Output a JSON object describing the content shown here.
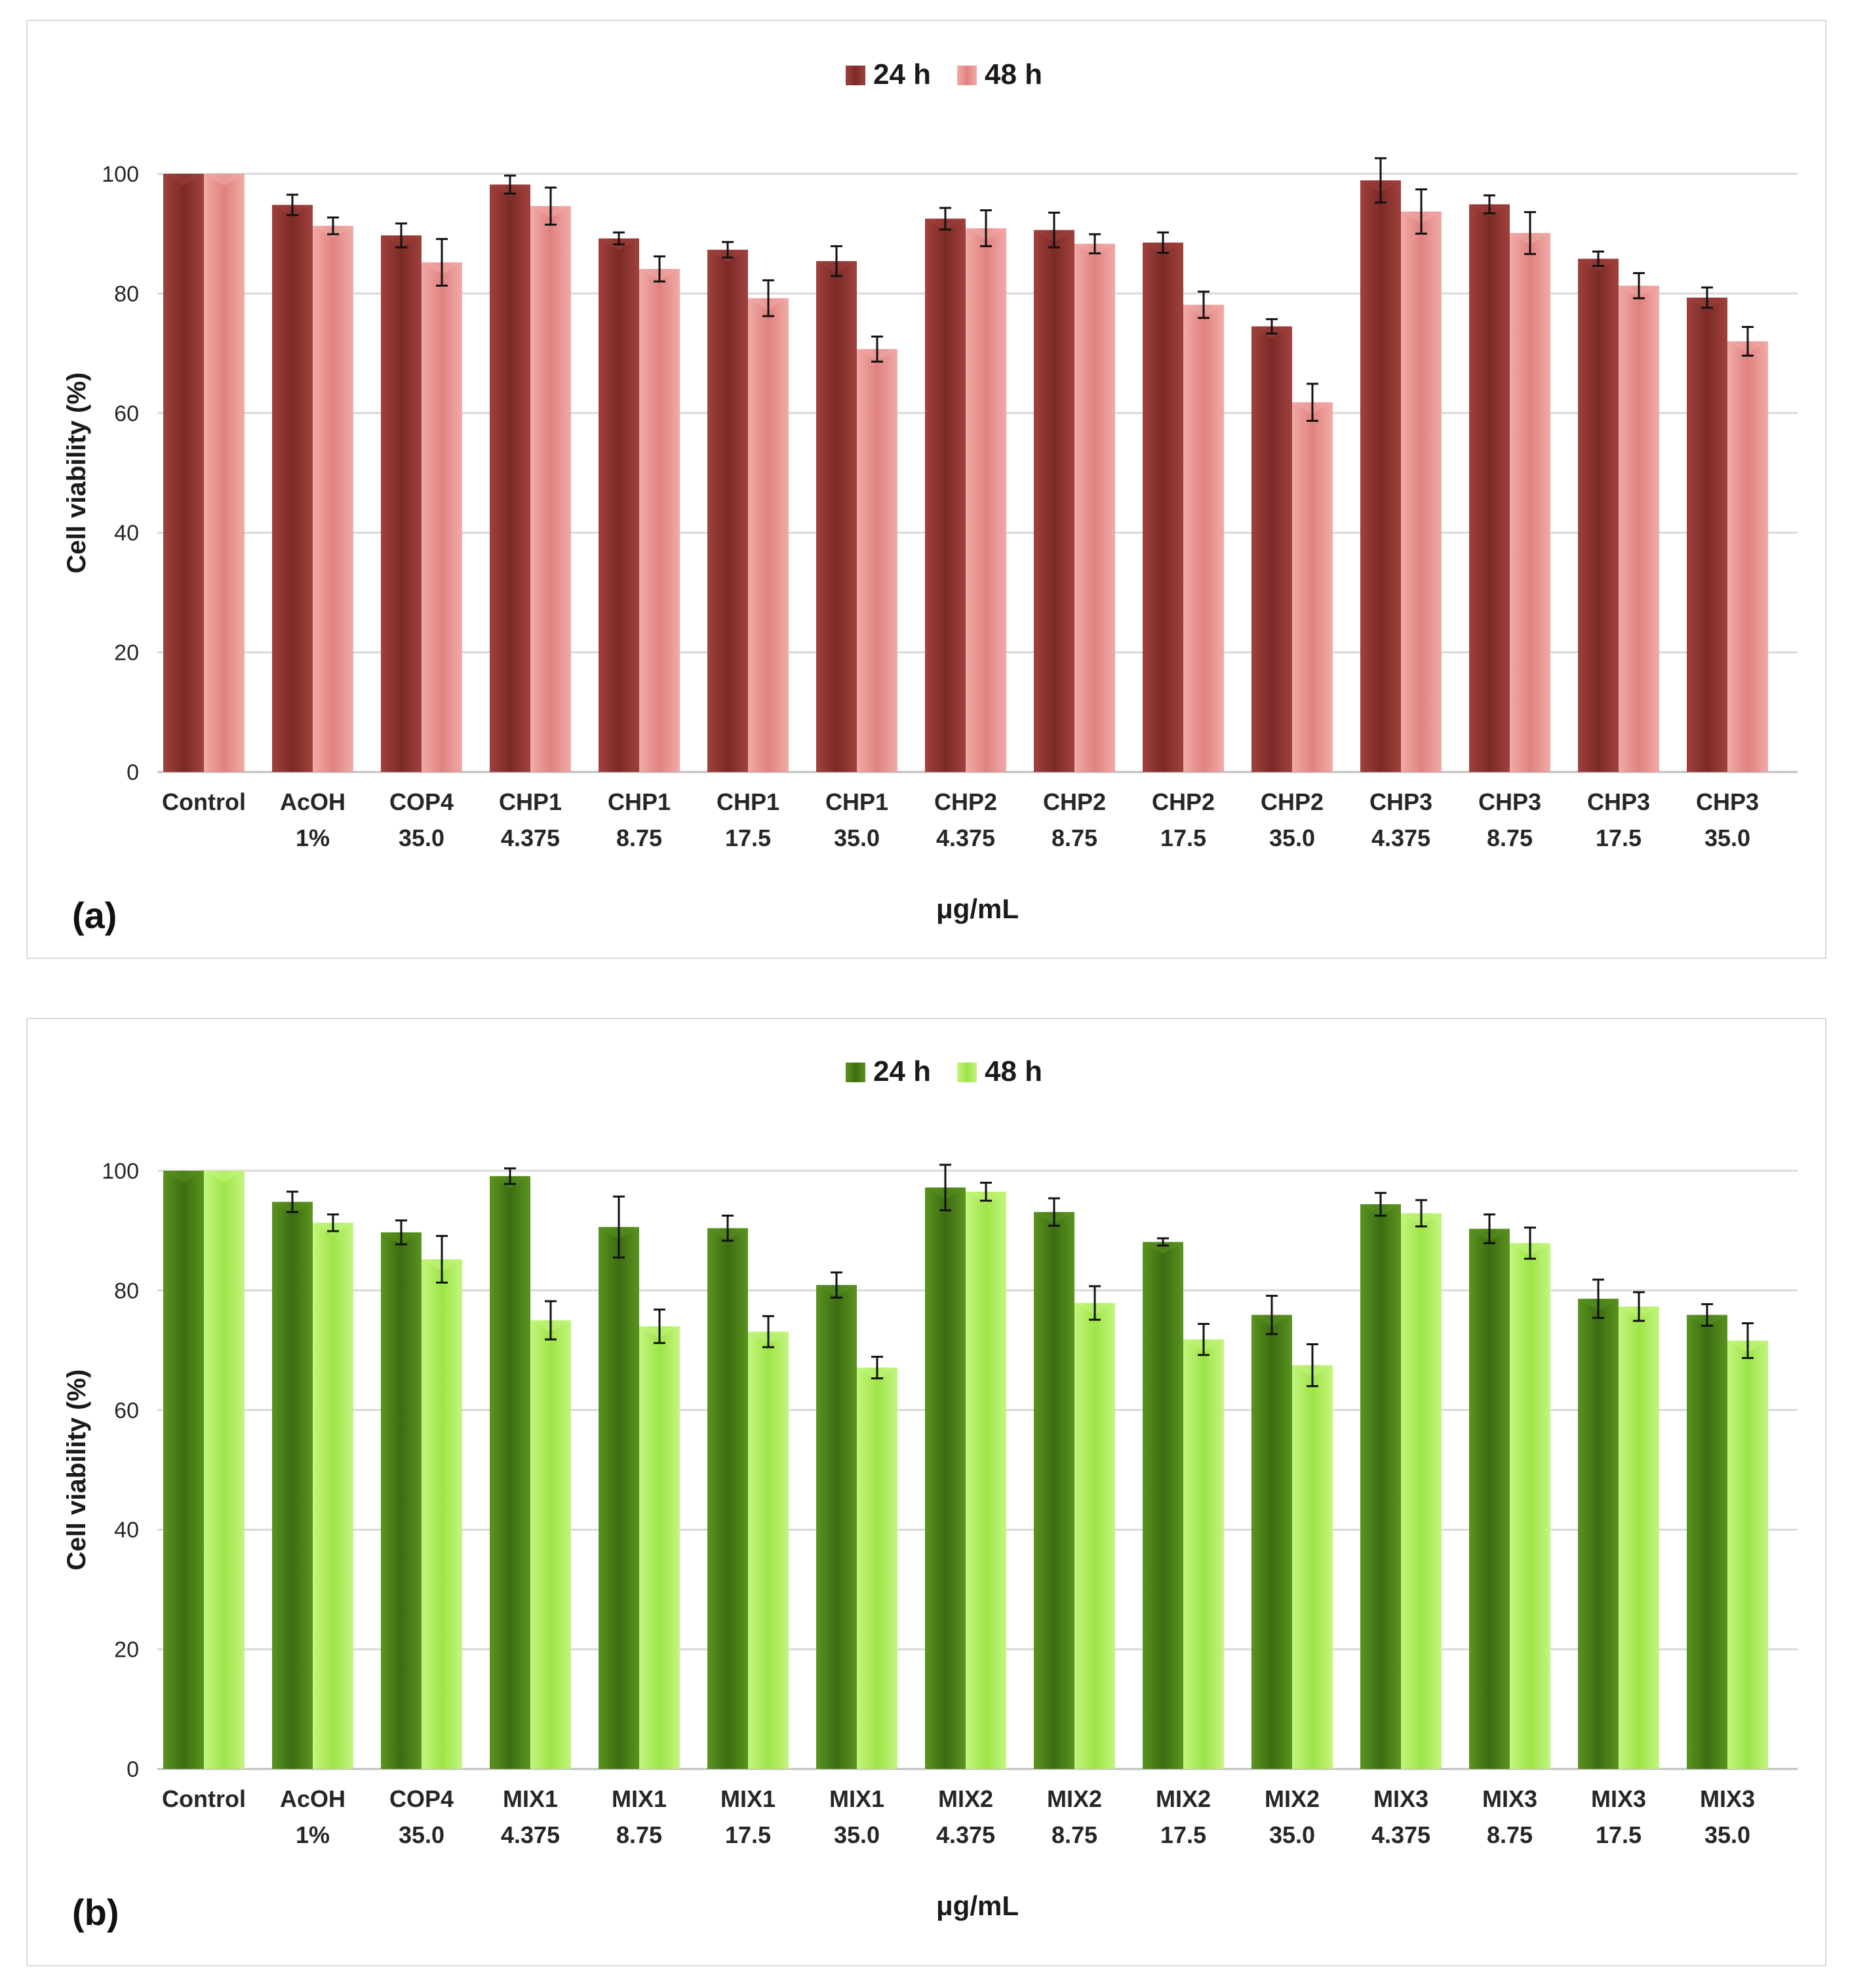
{
  "chart_data": [
    {
      "type": "bar",
      "panel_label": "(a)",
      "xlabel": "μg/mL",
      "ylabel": "Cell viability (%)",
      "ylim": [
        0,
        100
      ],
      "yticks": [
        0,
        20,
        40,
        60,
        80,
        100
      ],
      "grid": true,
      "legend_position": "top-center",
      "categories": [
        [
          "Control",
          ""
        ],
        [
          "AcOH",
          "1%"
        ],
        [
          "COP4",
          "35.0"
        ],
        [
          "CHP1",
          "4.375"
        ],
        [
          "CHP1",
          "8.75"
        ],
        [
          "CHP1",
          "17.5"
        ],
        [
          "CHP1",
          "35.0"
        ],
        [
          "CHP2",
          "4.375"
        ],
        [
          "CHP2",
          "8.75"
        ],
        [
          "CHP2",
          "17.5"
        ],
        [
          "CHP2",
          "35.0"
        ],
        [
          "CHP3",
          "4.375"
        ],
        [
          "CHP3",
          "8.75"
        ],
        [
          "CHP3",
          "17.5"
        ],
        [
          "CHP3",
          "35.0"
        ]
      ],
      "series": [
        {
          "name": "24 h",
          "color": "#7b2a28",
          "color_light": "#a0413d",
          "values": [
            100,
            94.8,
            89.7,
            98.2,
            89.2,
            87.3,
            85.4,
            92.5,
            90.6,
            88.5,
            74.5,
            98.9,
            94.9,
            85.8,
            79.3
          ],
          "errors": [
            0,
            1.7,
            2.0,
            1.5,
            1.0,
            1.3,
            2.5,
            1.8,
            2.9,
            1.7,
            1.2,
            3.7,
            1.5,
            1.2,
            1.7
          ]
        },
        {
          "name": "48 h",
          "color": "#e0827f",
          "color_light": "#f0aba8",
          "values": [
            100,
            91.3,
            85.2,
            94.6,
            84.1,
            79.2,
            70.7,
            90.9,
            88.3,
            78.1,
            61.8,
            93.7,
            90.1,
            81.3,
            72.0
          ],
          "errors": [
            0,
            1.4,
            3.9,
            3.1,
            2.1,
            3.0,
            2.1,
            3.0,
            1.6,
            2.2,
            3.1,
            3.7,
            3.5,
            2.1,
            2.4
          ]
        }
      ]
    },
    {
      "type": "bar",
      "panel_label": "(b)",
      "xlabel": "μg/mL",
      "ylabel": "Cell viability (%)",
      "ylim": [
        0,
        100
      ],
      "yticks": [
        0,
        20,
        40,
        60,
        80,
        100
      ],
      "grid": true,
      "legend_position": "top-center",
      "categories": [
        [
          "Control",
          ""
        ],
        [
          "AcOH",
          "1%"
        ],
        [
          "COP4",
          "35.0"
        ],
        [
          "MIX1",
          "4.375"
        ],
        [
          "MIX1",
          "8.75"
        ],
        [
          "MIX1",
          "17.5"
        ],
        [
          "MIX1",
          "35.0"
        ],
        [
          "MIX2",
          "4.375"
        ],
        [
          "MIX2",
          "8.75"
        ],
        [
          "MIX2",
          "17.5"
        ],
        [
          "MIX2",
          "35.0"
        ],
        [
          "MIX3",
          "4.375"
        ],
        [
          "MIX3",
          "8.75"
        ],
        [
          "MIX3",
          "17.5"
        ],
        [
          "MIX3",
          "35.0"
        ]
      ],
      "series": [
        {
          "name": "24 h",
          "color": "#3d6c12",
          "color_light": "#5a9420",
          "values": [
            100,
            94.8,
            89.7,
            99.1,
            90.6,
            90.4,
            80.9,
            97.2,
            93.1,
            88.1,
            75.9,
            94.4,
            90.3,
            78.6,
            75.9
          ],
          "errors": [
            0,
            1.7,
            2.0,
            1.3,
            5.1,
            2.1,
            2.1,
            3.8,
            2.3,
            0.6,
            3.2,
            1.9,
            2.4,
            3.2,
            1.8
          ]
        },
        {
          "name": "48 h",
          "color": "#9ee447",
          "color_light": "#c4f57f",
          "values": [
            100,
            91.3,
            85.2,
            75.0,
            74.0,
            73.1,
            67.1,
            96.5,
            77.9,
            71.8,
            67.5,
            92.9,
            87.9,
            77.3,
            71.6
          ],
          "errors": [
            0,
            1.4,
            3.9,
            3.2,
            2.8,
            2.6,
            1.8,
            1.5,
            2.8,
            2.6,
            3.5,
            2.2,
            2.6,
            2.4,
            2.9
          ]
        }
      ]
    }
  ]
}
